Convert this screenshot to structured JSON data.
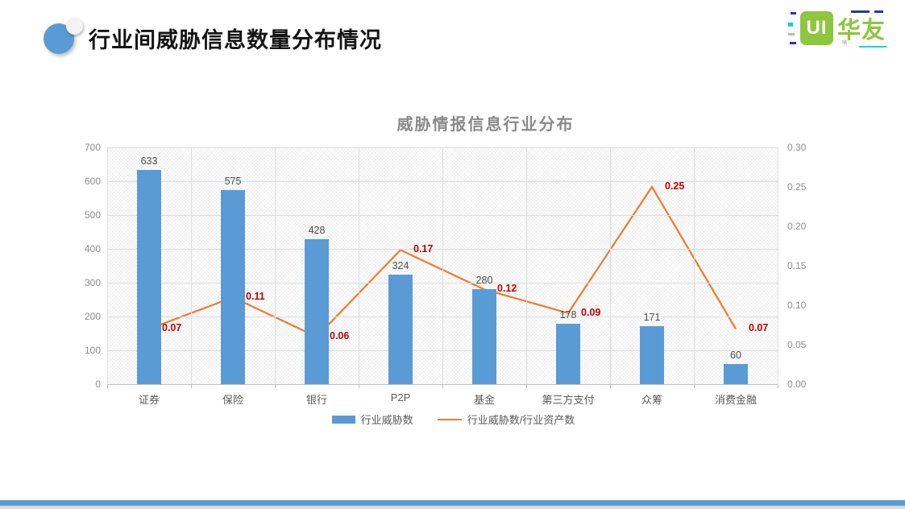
{
  "slide": {
    "title": "行业间威胁信息数量分布情况",
    "logo": {
      "icon_text": "UI",
      "brand": "华友"
    }
  },
  "chart_data": {
    "type": "bar+line combo",
    "title": "威胁情报信息行业分布",
    "categories": [
      "证券",
      "保险",
      "银行",
      "P2P",
      "基金",
      "第三方支付",
      "众筹",
      "消费金融"
    ],
    "series": [
      {
        "name": "行业威胁数",
        "type": "bar",
        "axis": "left",
        "color": "#5b9bd5",
        "values": [
          633,
          575,
          428,
          324,
          280,
          178,
          171,
          60
        ],
        "labels": [
          "633",
          "575",
          "428",
          "324",
          "280",
          "178",
          "171",
          "60"
        ]
      },
      {
        "name": "行业威胁数/行业资产数",
        "type": "line",
        "axis": "right",
        "color": "#ed7d31",
        "label_color": "#c00000",
        "values": [
          0.07,
          0.11,
          0.06,
          0.17,
          0.12,
          0.09,
          0.25,
          0.07
        ],
        "labels": [
          "0.07",
          "0.11",
          "0.06",
          "0.17",
          "0.12",
          "0.09",
          "0.25",
          "0.07"
        ]
      }
    ],
    "left_axis": {
      "min": 0,
      "max": 700,
      "step": 100,
      "ticks": [
        "0",
        "100",
        "200",
        "300",
        "400",
        "500",
        "600",
        "700"
      ]
    },
    "right_axis": {
      "min": 0,
      "max": 0.3,
      "step": 0.05,
      "ticks": [
        "0.00",
        "0.05",
        "0.10",
        "0.15",
        "0.20",
        "0.25",
        "0.30"
      ]
    },
    "legend": [
      {
        "label": "行业威胁数",
        "swatch": "bar",
        "color": "#5b9bd5"
      },
      {
        "label": "行业威胁数/行业资产数",
        "swatch": "line",
        "color": "#ed7d31"
      }
    ],
    "grid": true,
    "legend_position": "bottom"
  }
}
